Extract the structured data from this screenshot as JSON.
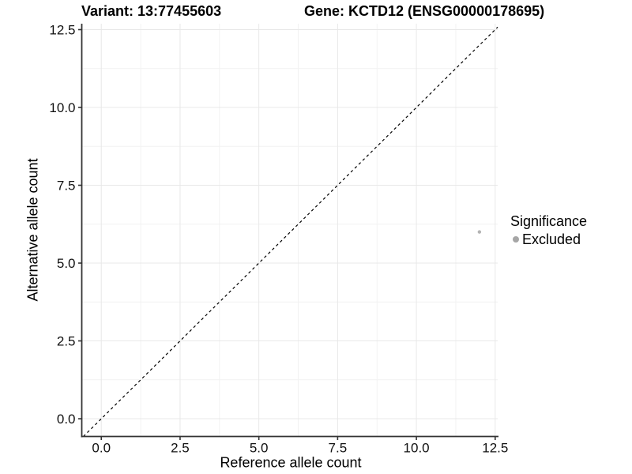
{
  "header": {
    "variant_title": "Variant: 13:77455603",
    "gene_title": "Gene: KCTD12 (ENSG00000178695)"
  },
  "chart_data": {
    "type": "scatter",
    "xlabel": "Reference allele count",
    "ylabel": "Alternative allele count",
    "x_ticks": [
      0.0,
      2.5,
      5.0,
      7.5,
      10.0,
      12.5
    ],
    "y_ticks": [
      0.0,
      2.5,
      5.0,
      7.5,
      10.0,
      12.5
    ],
    "xlim": [
      -0.62,
      12.58
    ],
    "ylim": [
      -0.57,
      12.69
    ],
    "tick_label_format_decimals": 1,
    "grid": {
      "major": true,
      "minor": true
    },
    "reference_line": {
      "kind": "identity-diagonal",
      "equation": "y = x",
      "style": "dashed",
      "color": "#000000"
    },
    "series": [
      {
        "name": "Excluded",
        "points": [
          {
            "x": 12,
            "y": 6
          }
        ],
        "color": "#b4b4b4",
        "point_radius": 2.2
      }
    ],
    "legend": {
      "position": "right",
      "title": "Significance",
      "entries": [
        {
          "label": "Excluded",
          "swatch_color": "#a6a6a6"
        }
      ]
    },
    "colors": {
      "background": "#ffffff",
      "axis_line": "#333333",
      "tick_mark": "#333333",
      "tick_text": "#111111",
      "grid_major": "#e8e8e8",
      "grid_minor": "#f2f2f2"
    }
  }
}
